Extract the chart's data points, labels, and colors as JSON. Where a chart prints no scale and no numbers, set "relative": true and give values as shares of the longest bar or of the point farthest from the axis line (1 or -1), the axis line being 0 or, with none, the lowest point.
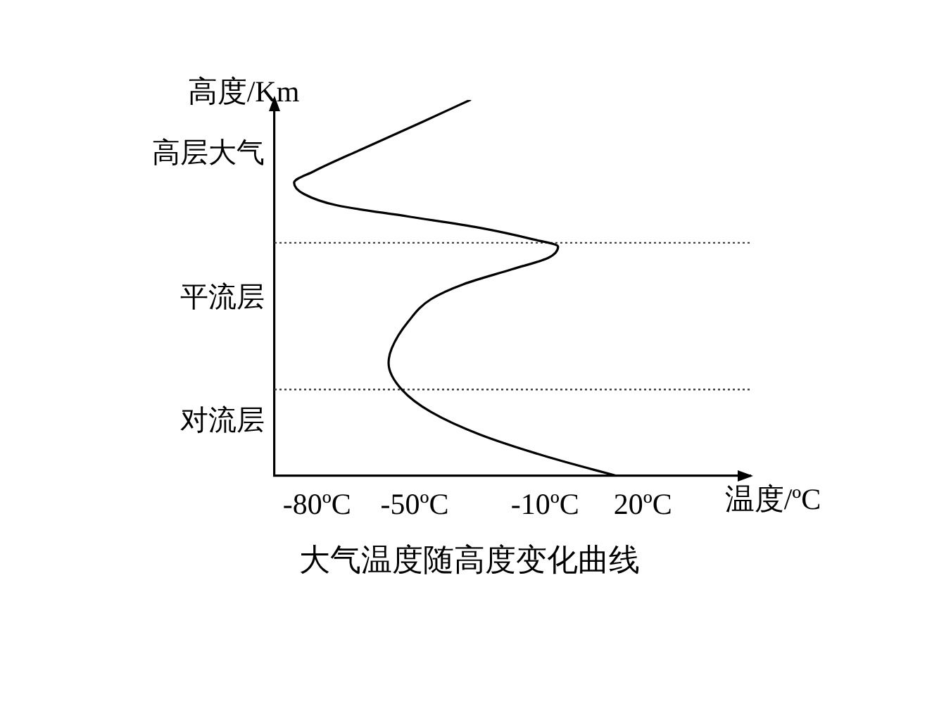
{
  "chart_data": {
    "type": "line",
    "title": "大气温度随高度变化曲线",
    "xlabel": "温度/ºC",
    "ylabel": "高度/Km",
    "relative": true,
    "xlim": [
      -93,
      53
    ],
    "xticks": [
      {
        "value": -80,
        "label": "-80ºC"
      },
      {
        "value": -50,
        "label": "-50ºC"
      },
      {
        "value": -10,
        "label": "-10ºC"
      },
      {
        "value": 20,
        "label": "20ºC"
      }
    ],
    "x": [
      12,
      -9,
      -30,
      -45,
      -54,
      -58,
      -57,
      -52,
      -45,
      -35,
      -20,
      -9,
      -6,
      -14,
      -30,
      -52,
      -74,
      -84,
      -87,
      -81,
      -66,
      -48,
      -33
    ],
    "series": [
      {
        "color": "#000000",
        "values": [
          0,
          0.05,
          0.11,
          0.17,
          0.23,
          0.3,
          0.34,
          0.41,
          0.47,
          0.51,
          0.55,
          0.58,
          0.61,
          0.63,
          0.66,
          0.69,
          0.72,
          0.75,
          0.78,
          0.81,
          0.87,
          0.94,
          1
        ]
      }
    ],
    "ref_lines": [
      {
        "axis": "y",
        "value": 0.62,
        "color": "#404040",
        "line_style": "dotted"
      },
      {
        "axis": "y",
        "value": 0.23,
        "color": "#404040",
        "line_style": "dotted"
      }
    ],
    "annotations": [
      "高层大气",
      "平流层",
      "对流层"
    ],
    "grid": false,
    "legend": false,
    "marker": "none",
    "tick_labels": "x"
  }
}
